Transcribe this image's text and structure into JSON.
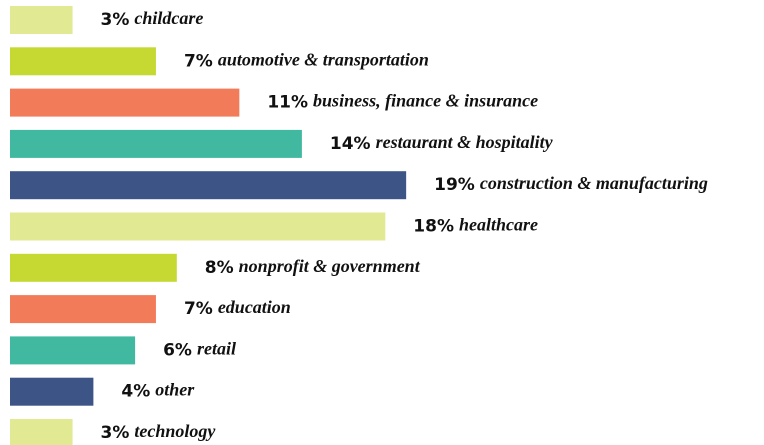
{
  "chart_data": {
    "type": "bar",
    "orientation": "horizontal",
    "categories": [
      "childcare",
      "automotive & transportation",
      "business, finance & insurance",
      "restaurant & hospitality",
      "construction & manufacturing",
      "healthcare",
      "nonprofit & government",
      "education",
      "retail",
      "other",
      "technology"
    ],
    "values": [
      3,
      7,
      11,
      14,
      19,
      18,
      8,
      7,
      6,
      4,
      3
    ],
    "value_labels": [
      "3%",
      "7%",
      "11%",
      "14%",
      "19%",
      "18%",
      "8%",
      "7%",
      "6%",
      "4%",
      "3%"
    ],
    "colors": [
      "#e1e992",
      "#c5d932",
      "#f27c5a",
      "#41b9a0",
      "#3d5487",
      "#e1e992",
      "#c5d932",
      "#f27c5a",
      "#41b9a0",
      "#3d5487",
      "#e1e992"
    ]
  }
}
